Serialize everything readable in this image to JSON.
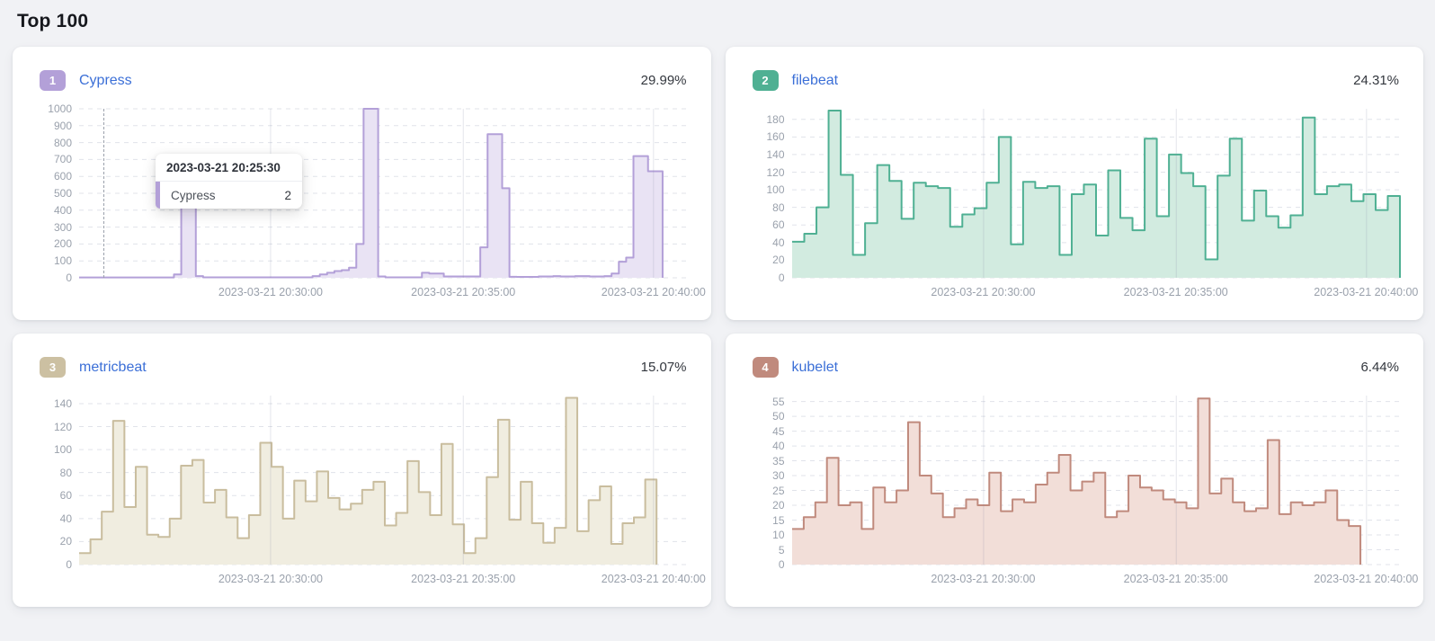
{
  "page": {
    "title": "Top 100"
  },
  "cards": [
    {
      "rank": "1",
      "name": "Cypress",
      "percent": "29.99%",
      "badge_color": "#b3a0d8"
    },
    {
      "rank": "2",
      "name": "filebeat",
      "percent": "24.31%",
      "badge_color": "#4fb093"
    },
    {
      "rank": "3",
      "name": "metricbeat",
      "percent": "15.07%",
      "badge_color": "#ccc0a2"
    },
    {
      "rank": "4",
      "name": "kubelet",
      "percent": "6.44%",
      "badge_color": "#c08a7d"
    }
  ],
  "chart_data": [
    {
      "type": "area",
      "series": "Cypress",
      "line_color": "#b3a0d8",
      "fill_color": "#e9e3f4",
      "ylim": [
        0,
        1000
      ],
      "y_ticks": [
        0,
        100,
        200,
        300,
        400,
        500,
        600,
        700,
        800,
        900,
        1000
      ],
      "y_plot_max": 1000,
      "x_ticks": [
        "2023-03-21 20:30:00",
        "2023-03-21 20:35:00",
        "2023-03-21 20:40:00"
      ],
      "x_range": [
        "2023-03-21 20:25:00",
        "2023-03-21 20:41:00"
      ],
      "values": [
        2,
        2,
        2,
        2,
        2,
        2,
        2,
        2,
        2,
        2,
        2,
        2,
        2,
        20,
        560,
        560,
        10,
        3,
        3,
        3,
        3,
        3,
        3,
        3,
        3,
        3,
        3,
        3,
        3,
        3,
        3,
        3,
        10,
        20,
        30,
        40,
        45,
        60,
        200,
        1000,
        1000,
        8,
        3,
        3,
        3,
        3,
        3,
        30,
        25,
        25,
        8,
        8,
        8,
        8,
        8,
        180,
        850,
        850,
        530,
        6,
        5,
        5,
        5,
        8,
        8,
        10,
        8,
        8,
        10,
        10,
        8,
        8,
        10,
        25,
        95,
        120,
        720,
        720,
        630,
        630
      ],
      "crosshair": true,
      "tooltip": {
        "title": "2023-03-21 20:25:30",
        "series": "Cypress",
        "value": "2"
      }
    },
    {
      "type": "area",
      "series": "filebeat",
      "line_color": "#4fb093",
      "fill_color": "#d2ebe0",
      "ylim": [
        0,
        192
      ],
      "y_ticks": [
        0,
        20,
        40,
        60,
        80,
        100,
        120,
        140,
        160,
        180
      ],
      "y_plot_max": 192,
      "x_ticks": [
        "2023-03-21 20:30:00",
        "2023-03-21 20:35:00",
        "2023-03-21 20:40:00"
      ],
      "x_range": [
        "2023-03-21 20:25:00",
        "2023-03-21 20:41:00"
      ],
      "values": [
        41,
        50,
        80,
        190,
        117,
        26,
        62,
        128,
        110,
        67,
        108,
        104,
        102,
        58,
        72,
        79,
        108,
        160,
        38,
        109,
        102,
        104,
        26,
        95,
        106,
        48,
        122,
        68,
        54,
        158,
        70,
        140,
        119,
        104,
        21,
        116,
        158,
        65,
        99,
        70,
        57,
        71,
        182,
        95,
        104,
        106,
        87,
        95,
        77,
        93
      ]
    },
    {
      "type": "area",
      "series": "metricbeat",
      "line_color": "#c9bd9e",
      "fill_color": "#f0ede0",
      "ylim": [
        0,
        147
      ],
      "y_ticks": [
        0,
        20,
        40,
        60,
        80,
        100,
        120,
        140
      ],
      "y_plot_max": 147,
      "x_ticks": [
        "2023-03-21 20:30:00",
        "2023-03-21 20:35:00",
        "2023-03-21 20:40:00"
      ],
      "x_range": [
        "2023-03-21 20:25:00",
        "2023-03-21 20:41:00"
      ],
      "values": [
        10,
        22,
        46,
        125,
        50,
        85,
        26,
        24,
        40,
        86,
        91,
        54,
        65,
        41,
        23,
        43,
        106,
        85,
        40,
        73,
        55,
        81,
        58,
        48,
        53,
        65,
        72,
        34,
        45,
        90,
        63,
        43,
        105,
        35,
        10,
        23,
        76,
        126,
        39,
        72,
        36,
        19,
        32,
        145,
        29,
        56,
        68,
        18,
        36,
        41,
        74
      ]
    },
    {
      "type": "area",
      "series": "kubelet",
      "line_color": "#c08a7d",
      "fill_color": "#f2ded8",
      "ylim": [
        0,
        57
      ],
      "y_ticks": [
        0,
        5,
        10,
        15,
        20,
        25,
        30,
        35,
        40,
        45,
        50,
        55
      ],
      "y_plot_max": 57,
      "x_ticks": [
        "2023-03-21 20:30:00",
        "2023-03-21 20:35:00",
        "2023-03-21 20:40:00"
      ],
      "x_range": [
        "2023-03-21 20:25:00",
        "2023-03-21 20:41:00"
      ],
      "values": [
        12,
        16,
        21,
        36,
        20,
        21,
        12,
        26,
        21,
        25,
        48,
        30,
        24,
        16,
        19,
        22,
        20,
        31,
        18,
        22,
        21,
        27,
        31,
        37,
        25,
        28,
        31,
        16,
        18,
        30,
        26,
        25,
        22,
        21,
        19,
        56,
        24,
        29,
        21,
        18,
        19,
        42,
        17,
        21,
        20,
        21,
        25,
        15,
        13
      ]
    }
  ]
}
